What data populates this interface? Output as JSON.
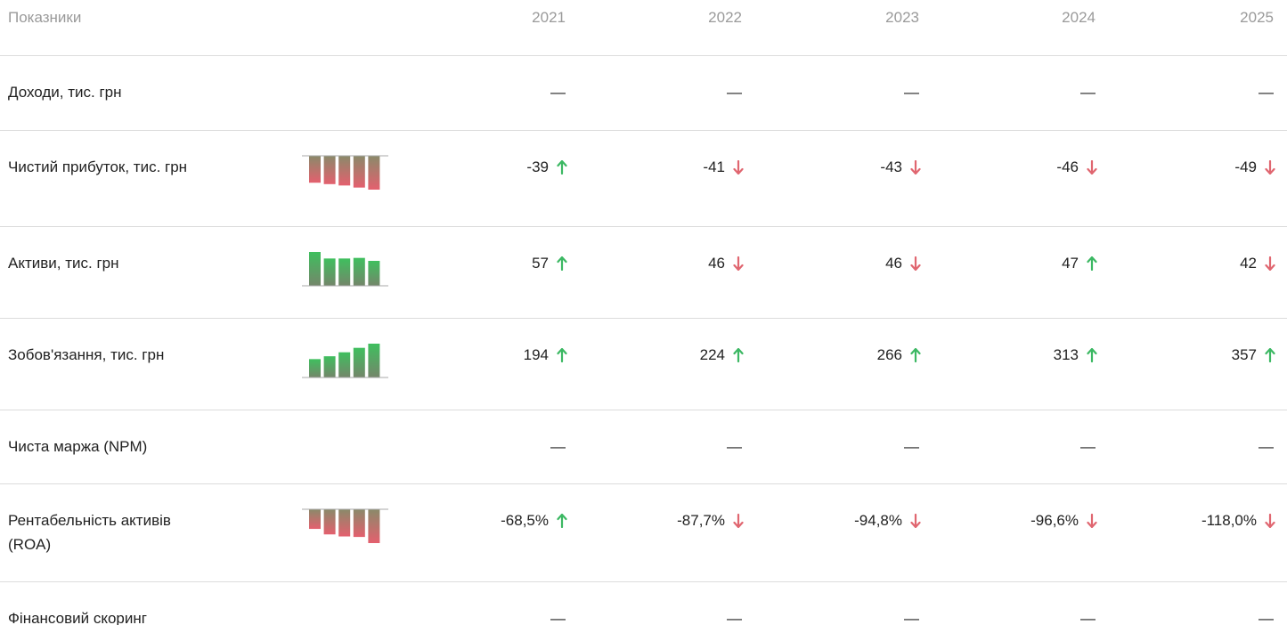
{
  "header": {
    "title": "Показники",
    "years": [
      "2021",
      "2022",
      "2023",
      "2024",
      "2025"
    ]
  },
  "rows": [
    {
      "label": "Доходи, тис. грн",
      "value_labels": [
        "—",
        "—",
        "—",
        "—",
        "—"
      ]
    },
    {
      "label": "Чистий прибуток, тис. грн",
      "values": [
        -39,
        -41,
        -43,
        -46,
        -49
      ],
      "value_labels": [
        "-39",
        "-41",
        "-43",
        "-46",
        "-49"
      ],
      "trends": [
        "up",
        "down",
        "down",
        "down",
        "down"
      ]
    },
    {
      "label": "Активи, тис. грн",
      "values": [
        57,
        46,
        46,
        47,
        42
      ],
      "value_labels": [
        "57",
        "46",
        "46",
        "47",
        "42"
      ],
      "trends": [
        "up",
        "down",
        "down",
        "up",
        "down"
      ]
    },
    {
      "label": "Зобов'язання, тис. грн",
      "values": [
        194,
        224,
        266,
        313,
        357
      ],
      "value_labels": [
        "194",
        "224",
        "266",
        "313",
        "357"
      ],
      "trends": [
        "up",
        "up",
        "up",
        "up",
        "up"
      ]
    },
    {
      "label": "Чиста маржа (NPM)",
      "value_labels": [
        "—",
        "—",
        "—",
        "—",
        "—"
      ]
    },
    {
      "label": "Рентабельність активів (ROA)",
      "values": [
        -68.5,
        -87.7,
        -94.8,
        -96.6,
        -118.0
      ],
      "value_labels": [
        "-68,5%",
        "-87,7%",
        "-94,8%",
        "-96,6%",
        "-118,0%"
      ],
      "trends": [
        "up",
        "down",
        "down",
        "down",
        "down"
      ]
    },
    {
      "label": "Фінансовий скоринг",
      "value_labels": [
        "—",
        "—",
        "—",
        "—",
        "—"
      ]
    }
  ]
}
